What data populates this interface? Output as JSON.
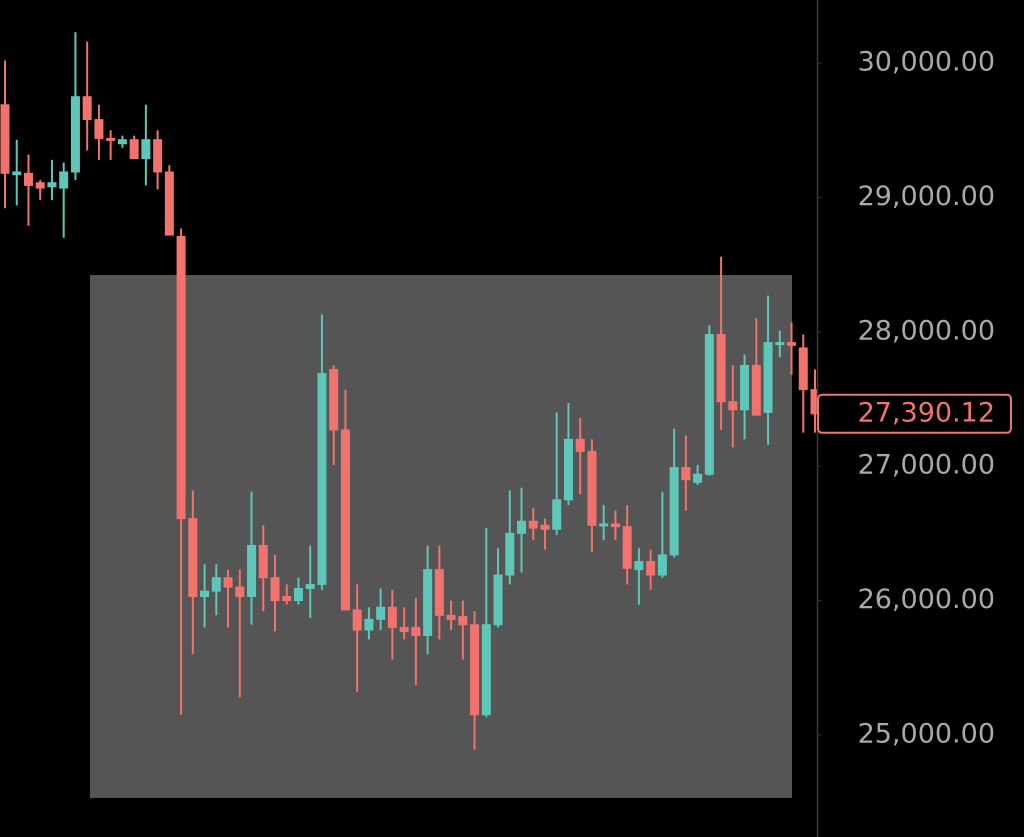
{
  "chart_data": {
    "type": "candlestick",
    "open": [
      29690,
      29170,
      29180,
      29110,
      29080,
      29070,
      29190,
      29750,
      29580,
      29440,
      29400,
      29430,
      29290,
      29430,
      29190,
      28710,
      26610,
      26030,
      26070,
      26170,
      26100,
      26030,
      26410,
      26170,
      26030,
      26000,
      26090,
      26120,
      27720,
      27270,
      25930,
      25780,
      25860,
      25950,
      25800,
      25800,
      25740,
      26230,
      25890,
      25880,
      25820,
      25150,
      25820,
      26190,
      26500,
      26590,
      26560,
      26530,
      26750,
      27200,
      27110,
      26560,
      26570,
      26550,
      26230,
      26290,
      26190,
      26340,
      26990,
      26880,
      26940,
      27980,
      27480,
      27420,
      27750,
      27400,
      27910,
      27920,
      27880,
      27570
    ],
    "high": [
      30020,
      29430,
      29320,
      29130,
      29280,
      29260,
      30230,
      30160,
      29690,
      29500,
      29460,
      29460,
      29690,
      29500,
      29240,
      28770,
      26820,
      26270,
      26270,
      26230,
      26230,
      26810,
      26560,
      26340,
      26120,
      26170,
      26410,
      28130,
      27750,
      27570,
      26120,
      25950,
      26090,
      26080,
      25950,
      26020,
      26410,
      26410,
      26000,
      26000,
      25920,
      26540,
      26390,
      26820,
      26840,
      26690,
      26610,
      27400,
      27470,
      27360,
      27200,
      26710,
      26670,
      26710,
      26390,
      26380,
      26810,
      27280,
      27230,
      27010,
      28050,
      28560,
      27750,
      27830,
      28100,
      28270,
      28010,
      28070,
      27980,
      27720
    ],
    "low": [
      28920,
      28940,
      28790,
      28980,
      28980,
      28700,
      29130,
      29350,
      29280,
      29280,
      29370,
      29290,
      29090,
      29060,
      28720,
      25150,
      25600,
      25800,
      25890,
      25800,
      25280,
      25820,
      25920,
      25770,
      25970,
      25970,
      25870,
      26080,
      27010,
      25930,
      25320,
      25710,
      25780,
      25560,
      25710,
      25370,
      25600,
      25710,
      25780,
      25560,
      24890,
      25130,
      25800,
      26120,
      26210,
      26450,
      26380,
      26490,
      26710,
      26790,
      26360,
      26450,
      26450,
      26120,
      25970,
      26080,
      26170,
      26320,
      26670,
      26860,
      26930,
      27270,
      27140,
      27200,
      27380,
      27160,
      27810,
      27680,
      27250,
      27250
    ],
    "close": [
      29180,
      29190,
      29090,
      29070,
      29110,
      29190,
      29750,
      29580,
      29440,
      29430,
      29430,
      29290,
      29430,
      29190,
      28720,
      26610,
      26030,
      26070,
      26170,
      26100,
      26030,
      26410,
      26170,
      26000,
      26000,
      26090,
      26120,
      27690,
      27270,
      25930,
      25780,
      25860,
      25950,
      25800,
      25770,
      25740,
      26230,
      25890,
      25860,
      25820,
      25150,
      25820,
      26190,
      26500,
      26590,
      26540,
      26530,
      26750,
      27200,
      27110,
      26560,
      26570,
      26550,
      26240,
      26290,
      26190,
      26340,
      26990,
      26900,
      26940,
      27980,
      27480,
      27420,
      27750,
      27380,
      27920,
      27920,
      27900,
      27570,
      27390.12
    ],
    "last_price_label": "27,390.12",
    "up_color": "#5ec7b9",
    "down_color": "#f2736e",
    "ylim": [
      24240,
      30470
    ],
    "yticks": [
      {
        "value": 25000,
        "label": "25,000.00"
      },
      {
        "value": 26000,
        "label": "26,000.00"
      },
      {
        "value": 27000,
        "label": "27,000.00"
      },
      {
        "value": 28000,
        "label": "28,000.00"
      },
      {
        "value": 29000,
        "label": "29,000.00"
      },
      {
        "value": 30000,
        "label": "30,000.00"
      }
    ]
  }
}
